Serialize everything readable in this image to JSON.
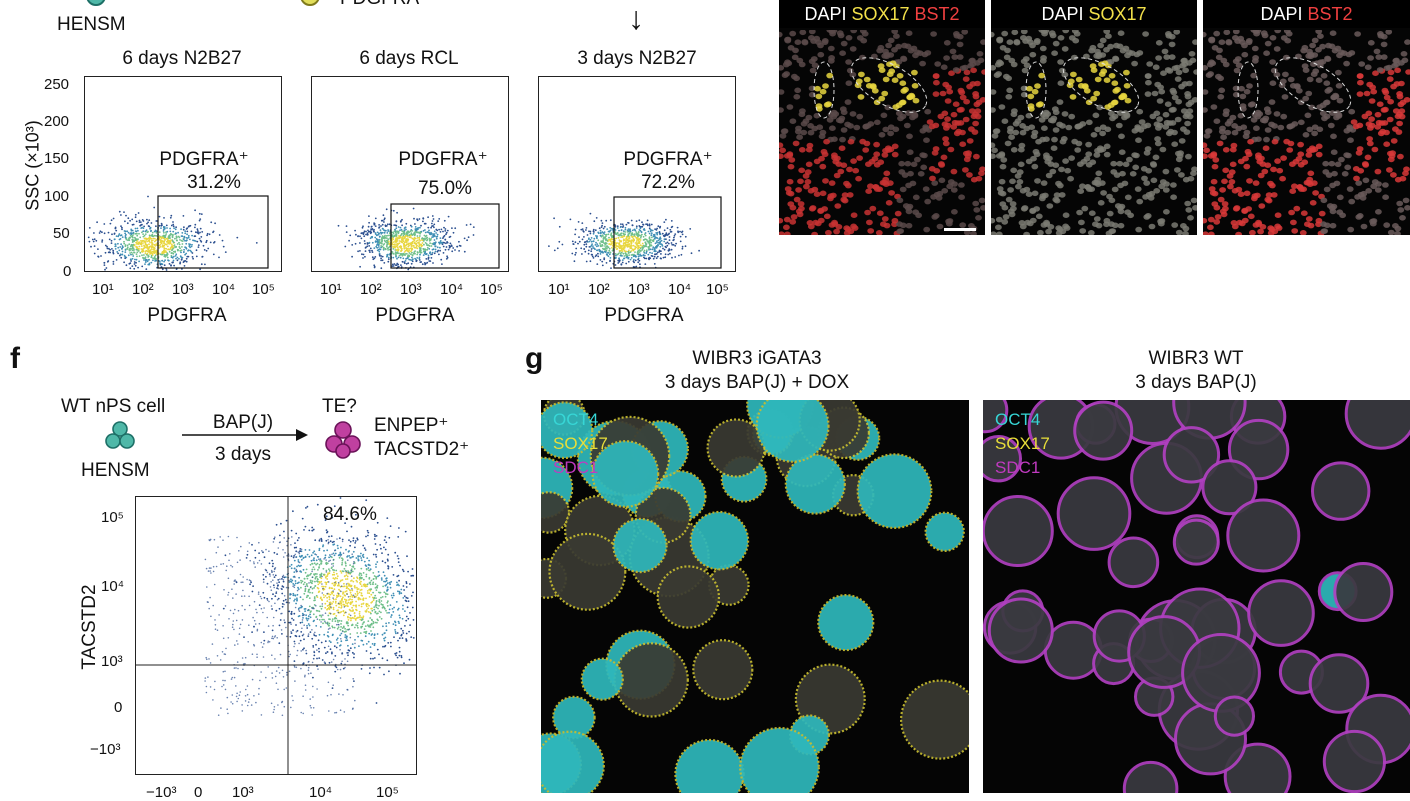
{
  "top": {
    "cell_label": "HENSM",
    "marker_label": "PDGFRA",
    "arrow_symbol": "↓",
    "plots": [
      {
        "title": "6 days N2B27",
        "gate_label": "PDGFRA⁺",
        "gate_pct": "31.2%"
      },
      {
        "title": "6 days RCL",
        "gate_label": "PDGFRA⁺",
        "gate_pct": "75.0%"
      },
      {
        "title": "3 days N2B27",
        "gate_label": "PDGFRA⁺",
        "gate_pct": "72.2%"
      }
    ],
    "y_axis_label": "SSC (×10³)",
    "y_ticks": [
      "250",
      "200",
      "150",
      "100",
      "50",
      "0"
    ],
    "x_axis_label": "PDGFRA",
    "x_ticks": [
      "10¹",
      "10²",
      "10³",
      "10⁴",
      "10⁵"
    ]
  },
  "micrographs_top": [
    {
      "title_parts": [
        {
          "text": "DAPI ",
          "color": "#ffffff"
        },
        {
          "text": "SOX17 ",
          "color": "#f2e04a"
        },
        {
          "text": "BST2",
          "color": "#f04040"
        }
      ]
    },
    {
      "title_parts": [
        {
          "text": "DAPI ",
          "color": "#ffffff"
        },
        {
          "text": "SOX17",
          "color": "#f2e04a"
        }
      ]
    },
    {
      "title_parts": [
        {
          "text": "DAPI ",
          "color": "#ffffff"
        },
        {
          "text": "BST2",
          "color": "#f04040"
        }
      ]
    }
  ],
  "panel_f": {
    "letter": "f",
    "source_cell": "WT nPS cell",
    "source_sub": "HENSM",
    "arrow_top": "BAP(J)",
    "arrow_bottom": "3 days",
    "target_label": "TE?",
    "marker_1": "ENPEP⁺",
    "marker_2": "TACSTD2⁺",
    "y_axis_label": "TACSTD2",
    "y_ticks": [
      "10⁵",
      "10⁴",
      "10³",
      "0",
      "−10³"
    ],
    "x_ticks": [
      "−10³",
      "0",
      "10³",
      "10⁴",
      "10⁵"
    ],
    "quadrant_pct": "84.6%"
  },
  "panel_g": {
    "letter": "g",
    "images": [
      {
        "title_1": "WIBR3 iGATA3",
        "title_2": "3 days BAP(J) + DOX",
        "channels": [
          {
            "text": "OCT4",
            "color": "#37d6d6"
          },
          {
            "text": "SOX17",
            "color": "#e8de3a"
          },
          {
            "text": "SDC1",
            "color": "#c03ac0"
          }
        ]
      },
      {
        "title_1": "WIBR3 WT",
        "title_2": "3 days BAP(J)",
        "channels": [
          {
            "text": "OCT4",
            "color": "#37d6d6"
          },
          {
            "text": "SOX17",
            "color": "#e8de3a"
          },
          {
            "text": "SDC1",
            "color": "#c03ac0"
          }
        ]
      }
    ]
  }
}
